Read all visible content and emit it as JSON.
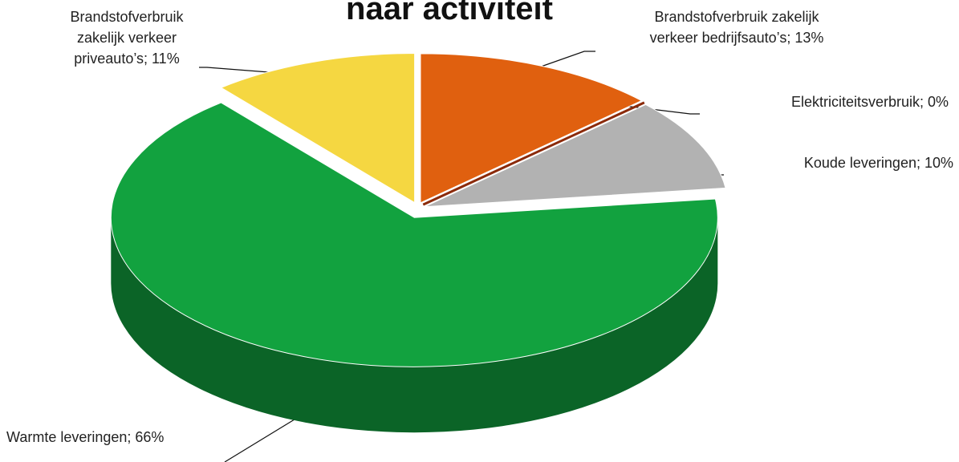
{
  "chart_data": {
    "type": "pie",
    "title": "naar activiteit",
    "labels": [
      [
        "Brandstofverbruik zakelijk",
        "verkeer bedrijfsauto’s; 13%"
      ],
      [
        "Elektriciteitsverbruik; 0%"
      ],
      [
        "Koude leveringen; 10%"
      ],
      [
        "Warmte leveringen; 66%"
      ],
      [
        "Brandstofverbruik",
        "zakelijk verkeer",
        "priveauto’s; 11%"
      ]
    ],
    "values": [
      13,
      0,
      10,
      66,
      11
    ],
    "colors": [
      "#e0600f",
      "#8b2a0a",
      "#b2b2b2",
      "#12a23f",
      "#f5d741"
    ]
  }
}
